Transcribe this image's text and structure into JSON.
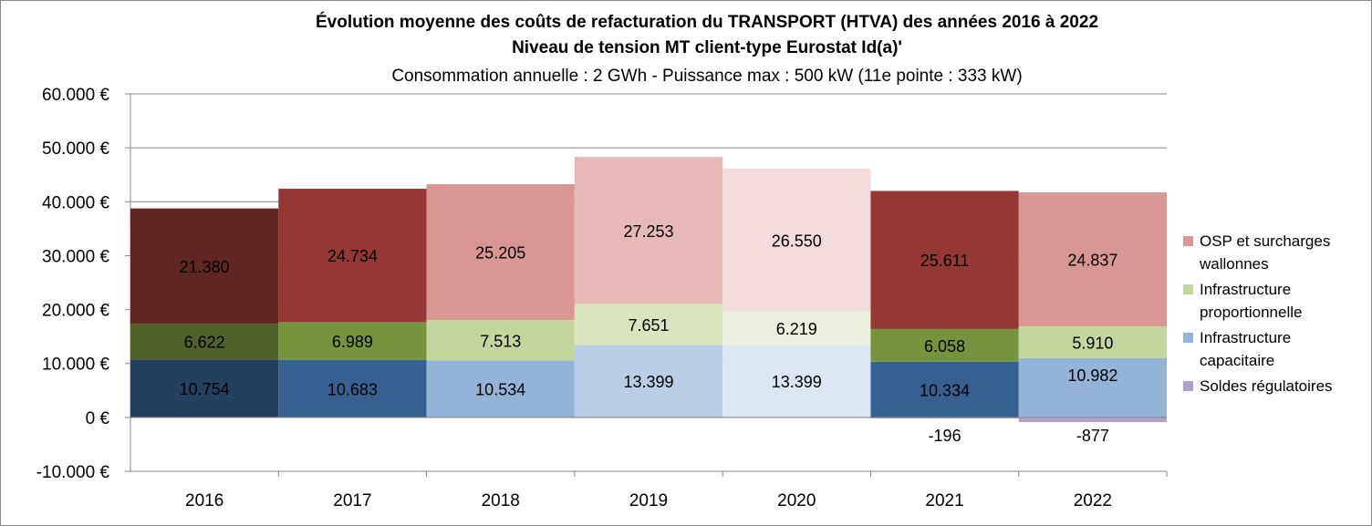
{
  "chart_data": {
    "type": "bar",
    "stacked": true,
    "title": "Évolution moyenne des coûts de refacturation du TRANSPORT (HTVA) des années 2016 à 2022",
    "subtitle": "Niveau de tension MT client-type Eurostat Id(a)'",
    "subtitle2": "Consommation annuelle : 2 GWh - Puissance max : 500 kW (11e pointe : 333 kW)",
    "categories": [
      "2016",
      "2017",
      "2018",
      "2019",
      "2020",
      "2021",
      "2022"
    ],
    "ylim": [
      -10000,
      60000
    ],
    "yticks": [
      -10000,
      0,
      10000,
      20000,
      30000,
      40000,
      50000,
      60000
    ],
    "ytick_labels": [
      "-10.000 €",
      "0 €",
      "10.000 €",
      "20.000 €",
      "30.000 €",
      "40.000 €",
      "50.000 €",
      "60.000 €"
    ],
    "grid": true,
    "legend_position": "right",
    "series": [
      {
        "name": "Infrastructure capacitaire",
        "values": [
          10754,
          10683,
          10534,
          13399,
          13399,
          10334,
          10982
        ],
        "labels": [
          "10.754",
          "10.683",
          "10.534",
          "13.399",
          "13.399",
          "10.334",
          "10.982"
        ],
        "colors": [
          "#253F5E",
          "#376092",
          "#95B3D7",
          "#B9CDE5",
          "#DCE6F2",
          "#376092",
          "#95B3D7"
        ],
        "legend_color": "#95B3D7"
      },
      {
        "name": "Infrastructure proportionnelle",
        "values": [
          6622,
          6989,
          7513,
          7651,
          6219,
          6058,
          5910
        ],
        "labels": [
          "6.622",
          "6.989",
          "7.513",
          "7.651",
          "6.219",
          "6.058",
          "5.910"
        ],
        "colors": [
          "#4F6228",
          "#77933C",
          "#C3D69B",
          "#D7E4BD",
          "#EBF1DE",
          "#77933C",
          "#C3D69B"
        ],
        "legend_color": "#C3D69B"
      },
      {
        "name": "OSP et surcharges wallonnes",
        "values": [
          21380,
          24734,
          25205,
          27253,
          26550,
          25611,
          24837
        ],
        "labels": [
          "21.380",
          "24.734",
          "25.205",
          "27.253",
          "26.550",
          "25.611",
          "24.837"
        ],
        "colors": [
          "#632523",
          "#953735",
          "#D99694",
          "#E6B9B8",
          "#F2DCDB",
          "#953735",
          "#D99694"
        ],
        "legend_color": "#D99694"
      },
      {
        "name": "Soldes régulatoires",
        "values": [
          null,
          null,
          null,
          null,
          null,
          -196,
          -877
        ],
        "labels": [
          null,
          null,
          null,
          null,
          null,
          "-196",
          "-877"
        ],
        "colors": [
          "#B3A2C7",
          "#B3A2C7",
          "#B3A2C7",
          "#B3A2C7",
          "#B3A2C7",
          "#B3A2C7",
          "#B3A2C7"
        ],
        "legend_color": "#B3A2C7"
      }
    ],
    "legend_order": [
      2,
      1,
      0,
      3
    ]
  }
}
